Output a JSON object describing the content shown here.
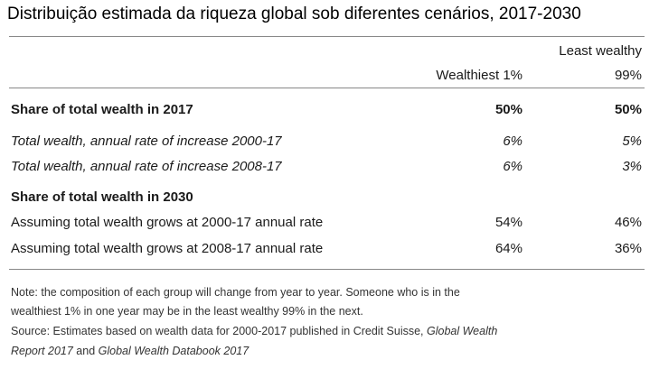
{
  "title": "Distribuição estimada da riqueza global sob diferentes cenários, 2017-2030",
  "columns": {
    "col1": "Wealthiest 1%",
    "col2_line1": "Least wealthy",
    "col2_line2": "99%"
  },
  "rows": [
    {
      "label": "Share of total wealth in 2017",
      "v1": "50%",
      "v2": "50%"
    },
    {
      "label": "Total wealth, annual rate of increase 2000-17",
      "v1": "6%",
      "v2": "5%"
    },
    {
      "label": "Total wealth, annual rate of increase 2008-17",
      "v1": "6%",
      "v2": "3%"
    },
    {
      "label": "Share of total wealth in 2030"
    },
    {
      "label": "Assuming total wealth grows at 2000-17 annual rate",
      "v1": "54%",
      "v2": "46%"
    },
    {
      "label": "Assuming total wealth grows at 2008-17 annual rate",
      "v1": "64%",
      "v2": "36%"
    }
  ],
  "notes": {
    "note_line1": "Note: the composition of each group will change from year to year. Someone who is in the",
    "note_line2": "wealthiest 1% in one year may be in the least wealthy 99% in the next.",
    "source_line1": "Source: Estimates based on wealth data for 2000-2017 published in Credit Suisse, ",
    "source_italic1": "Global Wealth",
    "source_italic2": "Report 2017",
    "source_and": " and ",
    "source_italic3": "Global Wealth Databook 2017"
  }
}
